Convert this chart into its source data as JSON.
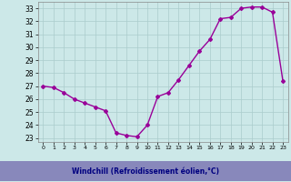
{
  "x": [
    0,
    1,
    2,
    3,
    4,
    5,
    6,
    7,
    8,
    9,
    10,
    11,
    12,
    13,
    14,
    15,
    16,
    17,
    18,
    19,
    20,
    21,
    22,
    23
  ],
  "y": [
    27.0,
    26.9,
    26.5,
    26.0,
    25.7,
    25.4,
    25.1,
    23.4,
    23.2,
    23.1,
    24.0,
    26.2,
    26.5,
    27.5,
    28.6,
    29.7,
    30.6,
    32.2,
    32.3,
    33.0,
    33.1,
    33.1,
    32.7,
    27.4
  ],
  "line_color": "#990099",
  "marker": "D",
  "markersize": 2,
  "linewidth": 1.0,
  "bg_color": "#cce8e8",
  "grid_color": "#aacccc",
  "xlabel": "Windchill (Refroidissement éolien,°C)",
  "xlabel_color": "#000080",
  "xlabel_bg": "#8888bb",
  "ylabel_ticks": [
    23,
    24,
    25,
    26,
    27,
    28,
    29,
    30,
    31,
    32,
    33
  ],
  "xtick_labels": [
    "0",
    "1",
    "2",
    "3",
    "4",
    "5",
    "6",
    "7",
    "8",
    "9",
    "10",
    "11",
    "12",
    "13",
    "14",
    "15",
    "16",
    "17",
    "18",
    "19",
    "20",
    "21",
    "22",
    "23"
  ],
  "xlim": [
    -0.5,
    23.5
  ],
  "ylim": [
    22.7,
    33.5
  ]
}
